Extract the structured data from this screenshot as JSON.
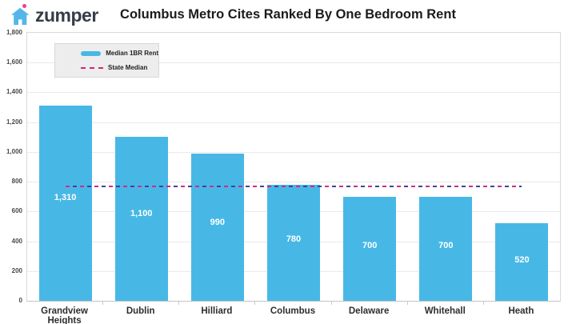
{
  "brand": {
    "name": "zumper"
  },
  "header": {
    "title": "Columbus Metro Cites Ranked By One Bedroom Rent"
  },
  "legend": {
    "median_rent_label": "Median 1BR Rent",
    "state_median_label": "State Median"
  },
  "colors": {
    "bar_blue": "#47b8e6",
    "logo_blue": "#55b7e8",
    "logo_dot_pink": "#f03f8d",
    "median_dash_pink": "#d12d7e",
    "median_dash_navy": "#4340a0"
  },
  "chart_data": {
    "type": "bar",
    "title": "Columbus Metro Cites Ranked By One Bedroom Rent",
    "categories": [
      "Grandview Heights",
      "Dublin",
      "Hilliard",
      "Columbus",
      "Delaware",
      "Whitehall",
      "Heath"
    ],
    "series": [
      {
        "name": "Median 1BR Rent",
        "values": [
          1310,
          1100,
          990,
          780,
          700,
          700,
          520
        ]
      }
    ],
    "value_labels": [
      "1,310",
      "1,100",
      "990",
      "780",
      "700",
      "700",
      "520"
    ],
    "state_median": 770,
    "ylim": [
      0,
      1800
    ],
    "ytick_step": 200,
    "ytick_labels": [
      "0",
      "200",
      "400",
      "600",
      "800",
      "1,000",
      "1,200",
      "1,400",
      "1,600",
      "1,800"
    ],
    "grid": true,
    "legend_position": "top-left",
    "bar_color": "#47b8e6"
  }
}
